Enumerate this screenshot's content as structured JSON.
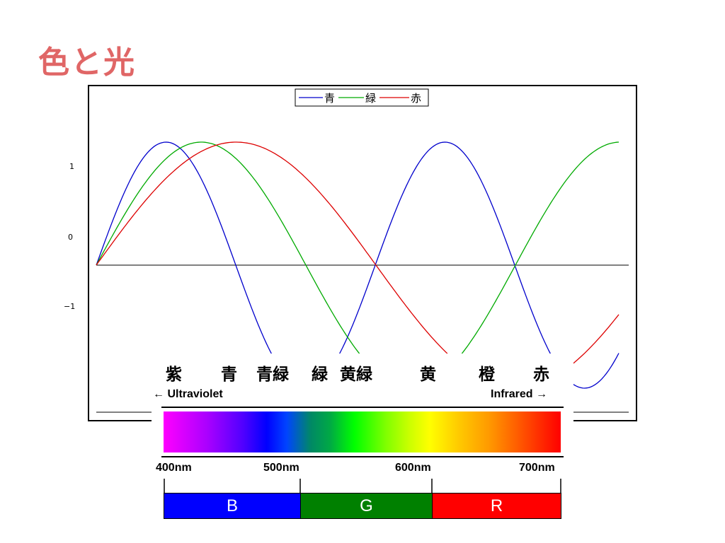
{
  "slide": {
    "title": "色と光",
    "title_color": "#e06666"
  },
  "chart": {
    "y_ticks": [
      "1",
      "0",
      "−1"
    ],
    "series_colors": {
      "blue": "#0000cc",
      "green": "#00aa00",
      "red": "#dd0000"
    },
    "legend": [
      "青",
      "緑",
      "赤"
    ]
  },
  "spectrum": {
    "color_names": [
      "紫",
      "青",
      "青緑",
      "緑",
      "黄緑",
      "黄",
      "橙",
      "赤"
    ],
    "ultraviolet_label": "← Ultraviolet",
    "infrared_label": "Infrared →",
    "wavelengths": [
      "400nm",
      "500nm",
      "600nm",
      "700nm"
    ],
    "bands": [
      {
        "label": "B",
        "color": "#0000ff"
      },
      {
        "label": "G",
        "color": "#008000"
      },
      {
        "label": "R",
        "color": "#ff0000"
      }
    ]
  }
}
